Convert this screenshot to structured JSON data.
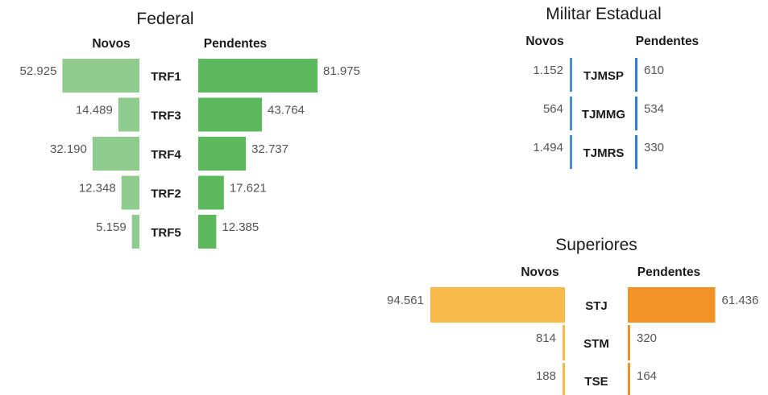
{
  "chart_data": [
    {
      "type": "bar",
      "title": "Federal",
      "headers": {
        "left": "Novos",
        "right": "Pendentes"
      },
      "categories": [
        "TRF1",
        "TRF3",
        "TRF4",
        "TRF2",
        "TRF5"
      ],
      "series": [
        {
          "name": "Novos",
          "values": [
            52925,
            14489,
            32190,
            12348,
            5159
          ],
          "labels": [
            "52.925",
            "14.489",
            "32.190",
            "12.348",
            "5.159"
          ]
        },
        {
          "name": "Pendentes",
          "values": [
            81975,
            43764,
            32737,
            17621,
            12385
          ],
          "labels": [
            "81.975",
            "43.764",
            "32.737",
            "17.621",
            "12.385"
          ]
        }
      ],
      "colors": {
        "left": "#8ecb8c",
        "right": "#5bb85c"
      }
    },
    {
      "type": "bar",
      "title": "Militar Estadual",
      "headers": {
        "left": "Novos",
        "right": "Pendentes"
      },
      "categories": [
        "TJMSP",
        "TJMMG",
        "TJMRS"
      ],
      "series": [
        {
          "name": "Novos",
          "values": [
            1152,
            564,
            1494
          ],
          "labels": [
            "1.152",
            "564",
            "1.494"
          ]
        },
        {
          "name": "Pendentes",
          "values": [
            610,
            534,
            330
          ],
          "labels": [
            "610",
            "534",
            "330"
          ]
        }
      ],
      "colors": {
        "left": "#4a90d9",
        "right": "#2f7fc8"
      }
    },
    {
      "type": "bar",
      "title": "Superiores",
      "headers": {
        "left": "Novos",
        "right": "Pendentes"
      },
      "categories": [
        "STJ",
        "STM",
        "TSE"
      ],
      "series": [
        {
          "name": "Novos",
          "values": [
            94561,
            814,
            188
          ],
          "labels": [
            "94.561",
            "814",
            "188"
          ]
        },
        {
          "name": "Pendentes",
          "values": [
            61436,
            320,
            164
          ],
          "labels": [
            "61.436",
            "320",
            "164"
          ]
        }
      ],
      "colors": {
        "left": "#f7b94a",
        "right": "#f29227"
      }
    }
  ]
}
